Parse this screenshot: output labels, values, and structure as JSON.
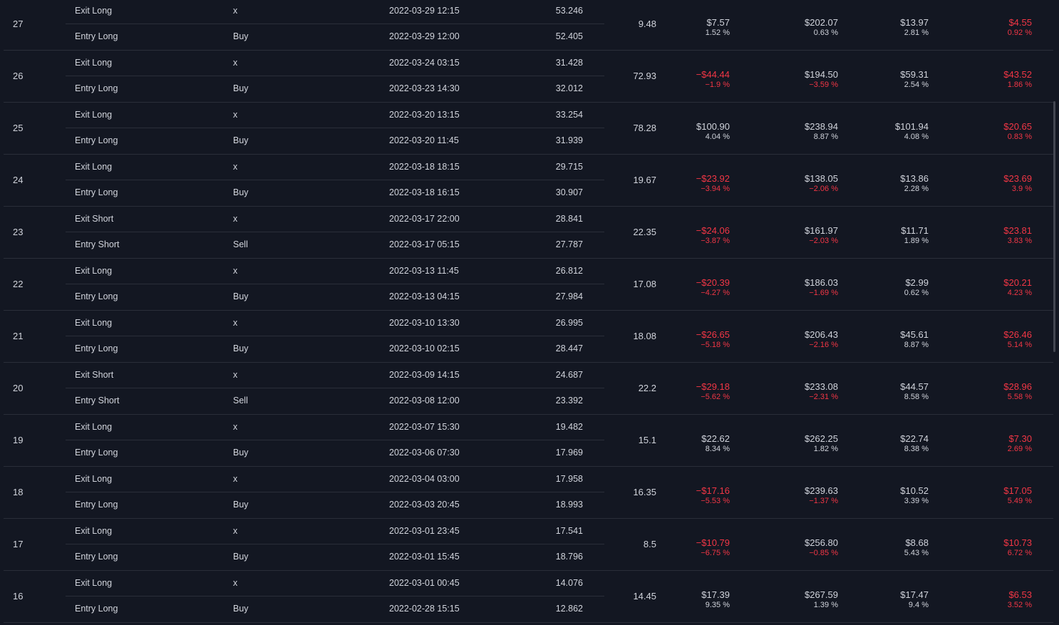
{
  "trades": [
    {
      "num": "27",
      "contracts": "9.48",
      "exit": {
        "type": "Exit Long",
        "signal": "x",
        "date": "2022-03-29 12:15",
        "price": "53.246"
      },
      "entry": {
        "type": "Entry Long",
        "signal": "Buy",
        "date": "2022-03-29 12:00",
        "price": "52.405"
      },
      "profit": {
        "value": "$7.57",
        "pct": "1.52 %",
        "negative": false
      },
      "cum": {
        "value": "$202.07",
        "pct": "0.63 %",
        "negative": false
      },
      "runup": {
        "value": "$13.97",
        "pct": "2.81 %"
      },
      "drawdown": {
        "value": "$4.55",
        "pct": "0.92 %"
      }
    },
    {
      "num": "26",
      "contracts": "72.93",
      "exit": {
        "type": "Exit Long",
        "signal": "x",
        "date": "2022-03-24 03:15",
        "price": "31.428"
      },
      "entry": {
        "type": "Entry Long",
        "signal": "Buy",
        "date": "2022-03-23 14:30",
        "price": "32.012"
      },
      "profit": {
        "value": "−$44.44",
        "pct": "−1.9 %",
        "negative": true
      },
      "cum": {
        "value": "$194.50",
        "pct": "−3.59 %",
        "negative": true
      },
      "runup": {
        "value": "$59.31",
        "pct": "2.54 %"
      },
      "drawdown": {
        "value": "$43.52",
        "pct": "1.86 %"
      }
    },
    {
      "num": "25",
      "contracts": "78.28",
      "exit": {
        "type": "Exit Long",
        "signal": "x",
        "date": "2022-03-20 13:15",
        "price": "33.254"
      },
      "entry": {
        "type": "Entry Long",
        "signal": "Buy",
        "date": "2022-03-20 11:45",
        "price": "31.939"
      },
      "profit": {
        "value": "$100.90",
        "pct": "4.04 %",
        "negative": false
      },
      "cum": {
        "value": "$238.94",
        "pct": "8.87 %",
        "negative": false
      },
      "runup": {
        "value": "$101.94",
        "pct": "4.08 %"
      },
      "drawdown": {
        "value": "$20.65",
        "pct": "0.83 %"
      }
    },
    {
      "num": "24",
      "contracts": "19.67",
      "exit": {
        "type": "Exit Long",
        "signal": "x",
        "date": "2022-03-18 18:15",
        "price": "29.715"
      },
      "entry": {
        "type": "Entry Long",
        "signal": "Buy",
        "date": "2022-03-18 16:15",
        "price": "30.907"
      },
      "profit": {
        "value": "−$23.92",
        "pct": "−3.94 %",
        "negative": true
      },
      "cum": {
        "value": "$138.05",
        "pct": "−2.06 %",
        "negative": true
      },
      "runup": {
        "value": "$13.86",
        "pct": "2.28 %"
      },
      "drawdown": {
        "value": "$23.69",
        "pct": "3.9 %"
      }
    },
    {
      "num": "23",
      "contracts": "22.35",
      "exit": {
        "type": "Exit Short",
        "signal": "x",
        "date": "2022-03-17 22:00",
        "price": "28.841"
      },
      "entry": {
        "type": "Entry Short",
        "signal": "Sell",
        "date": "2022-03-17 05:15",
        "price": "27.787"
      },
      "profit": {
        "value": "−$24.06",
        "pct": "−3.87 %",
        "negative": true
      },
      "cum": {
        "value": "$161.97",
        "pct": "−2.03 %",
        "negative": true
      },
      "runup": {
        "value": "$11.71",
        "pct": "1.89 %"
      },
      "drawdown": {
        "value": "$23.81",
        "pct": "3.83 %"
      }
    },
    {
      "num": "22",
      "contracts": "17.08",
      "exit": {
        "type": "Exit Long",
        "signal": "x",
        "date": "2022-03-13 11:45",
        "price": "26.812"
      },
      "entry": {
        "type": "Entry Long",
        "signal": "Buy",
        "date": "2022-03-13 04:15",
        "price": "27.984"
      },
      "profit": {
        "value": "−$20.39",
        "pct": "−4.27 %",
        "negative": true
      },
      "cum": {
        "value": "$186.03",
        "pct": "−1.69 %",
        "negative": true
      },
      "runup": {
        "value": "$2.99",
        "pct": "0.62 %"
      },
      "drawdown": {
        "value": "$20.21",
        "pct": "4.23 %"
      }
    },
    {
      "num": "21",
      "contracts": "18.08",
      "exit": {
        "type": "Exit Long",
        "signal": "x",
        "date": "2022-03-10 13:30",
        "price": "26.995"
      },
      "entry": {
        "type": "Entry Long",
        "signal": "Buy",
        "date": "2022-03-10 02:15",
        "price": "28.447"
      },
      "profit": {
        "value": "−$26.65",
        "pct": "−5.18 %",
        "negative": true
      },
      "cum": {
        "value": "$206.43",
        "pct": "−2.16 %",
        "negative": true
      },
      "runup": {
        "value": "$45.61",
        "pct": "8.87 %"
      },
      "drawdown": {
        "value": "$26.46",
        "pct": "5.14 %"
      }
    },
    {
      "num": "20",
      "contracts": "22.2",
      "exit": {
        "type": "Exit Short",
        "signal": "x",
        "date": "2022-03-09 14:15",
        "price": "24.687"
      },
      "entry": {
        "type": "Entry Short",
        "signal": "Sell",
        "date": "2022-03-08 12:00",
        "price": "23.392"
      },
      "profit": {
        "value": "−$29.18",
        "pct": "−5.62 %",
        "negative": true
      },
      "cum": {
        "value": "$233.08",
        "pct": "−2.31 %",
        "negative": true
      },
      "runup": {
        "value": "$44.57",
        "pct": "8.58 %"
      },
      "drawdown": {
        "value": "$28.96",
        "pct": "5.58 %"
      }
    },
    {
      "num": "19",
      "contracts": "15.1",
      "exit": {
        "type": "Exit Long",
        "signal": "x",
        "date": "2022-03-07 15:30",
        "price": "19.482"
      },
      "entry": {
        "type": "Entry Long",
        "signal": "Buy",
        "date": "2022-03-06 07:30",
        "price": "17.969"
      },
      "profit": {
        "value": "$22.62",
        "pct": "8.34 %",
        "negative": false
      },
      "cum": {
        "value": "$262.25",
        "pct": "1.82 %",
        "negative": false
      },
      "runup": {
        "value": "$22.74",
        "pct": "8.38 %"
      },
      "drawdown": {
        "value": "$7.30",
        "pct": "2.69 %"
      }
    },
    {
      "num": "18",
      "contracts": "16.35",
      "exit": {
        "type": "Exit Long",
        "signal": "x",
        "date": "2022-03-04 03:00",
        "price": "17.958"
      },
      "entry": {
        "type": "Entry Long",
        "signal": "Buy",
        "date": "2022-03-03 20:45",
        "price": "18.993"
      },
      "profit": {
        "value": "−$17.16",
        "pct": "−5.53 %",
        "negative": true
      },
      "cum": {
        "value": "$239.63",
        "pct": "−1.37 %",
        "negative": true
      },
      "runup": {
        "value": "$10.52",
        "pct": "3.39 %"
      },
      "drawdown": {
        "value": "$17.05",
        "pct": "5.49 %"
      }
    },
    {
      "num": "17",
      "contracts": "8.5",
      "exit": {
        "type": "Exit Long",
        "signal": "x",
        "date": "2022-03-01 23:45",
        "price": "17.541"
      },
      "entry": {
        "type": "Entry Long",
        "signal": "Buy",
        "date": "2022-03-01 15:45",
        "price": "18.796"
      },
      "profit": {
        "value": "−$10.79",
        "pct": "−6.75 %",
        "negative": true
      },
      "cum": {
        "value": "$256.80",
        "pct": "−0.85 %",
        "negative": true
      },
      "runup": {
        "value": "$8.68",
        "pct": "5.43 %"
      },
      "drawdown": {
        "value": "$10.73",
        "pct": "6.72 %"
      }
    },
    {
      "num": "16",
      "contracts": "14.45",
      "exit": {
        "type": "Exit Long",
        "signal": "x",
        "date": "2022-03-01 00:45",
        "price": "14.076"
      },
      "entry": {
        "type": "Entry Long",
        "signal": "Buy",
        "date": "2022-02-28 15:15",
        "price": "12.862"
      },
      "profit": {
        "value": "$17.39",
        "pct": "9.35 %",
        "negative": false
      },
      "cum": {
        "value": "$267.59",
        "pct": "1.39 %",
        "negative": false
      },
      "runup": {
        "value": "$17.47",
        "pct": "9.4 %"
      },
      "drawdown": {
        "value": "$6.53",
        "pct": "3.52 %"
      }
    }
  ],
  "colors": {
    "background": "#131722",
    "text": "#d1d4dc",
    "negative": "#f23645",
    "divider": "#2a2e39"
  }
}
